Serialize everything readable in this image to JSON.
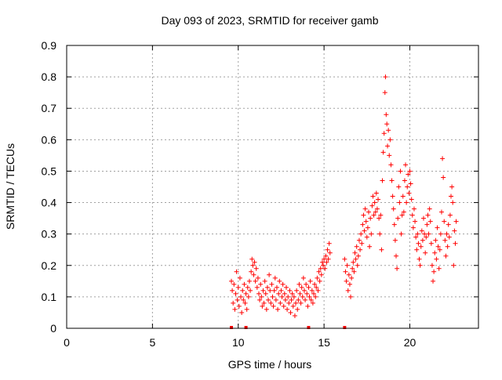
{
  "chart_data": {
    "type": "scatter",
    "title": "Day 093 of 2023, SRMTID for receiver gamb",
    "xlabel": "GPS time / hours",
    "ylabel": "SRMTID / TECUs",
    "xlim": [
      0,
      24
    ],
    "ylim": [
      0,
      0.9
    ],
    "xticks": [
      0,
      5,
      10,
      15,
      20
    ],
    "yticks": [
      0,
      0.1,
      0.2,
      0.3,
      0.4,
      0.5,
      0.6,
      0.7,
      0.8,
      0.9
    ],
    "xtick_labels": [
      "0",
      "5",
      "10",
      "15",
      "20"
    ],
    "ytick_labels": [
      "0",
      "0.1",
      "0.2",
      "0.3",
      "0.4",
      "0.5",
      "0.6",
      "0.7",
      "0.8",
      "0.9"
    ],
    "grid": true,
    "marker": "+",
    "color": "#ff0000",
    "series": [
      {
        "name": "SRMTID",
        "points": [
          [
            9.6,
            0.15
          ],
          [
            9.65,
            0.12
          ],
          [
            9.7,
            0.08
          ],
          [
            9.75,
            0.14
          ],
          [
            9.8,
            0.06
          ],
          [
            9.85,
            0.11
          ],
          [
            9.9,
            0.18
          ],
          [
            9.95,
            0.09
          ],
          [
            10.0,
            0.13
          ],
          [
            10.05,
            0.07
          ],
          [
            10.1,
            0.16
          ],
          [
            10.15,
            0.1
          ],
          [
            10.2,
            0.05
          ],
          [
            10.25,
            0.12
          ],
          [
            10.3,
            0.09
          ],
          [
            10.35,
            0.14
          ],
          [
            10.4,
            0.08
          ],
          [
            10.45,
            0.11
          ],
          [
            10.5,
            0.06
          ],
          [
            10.55,
            0.13
          ],
          [
            10.6,
            0.1
          ],
          [
            10.65,
            0.15
          ],
          [
            10.7,
            0.12
          ],
          [
            10.75,
            0.18
          ],
          [
            10.8,
            0.22
          ],
          [
            10.85,
            0.2
          ],
          [
            10.9,
            0.17
          ],
          [
            10.95,
            0.21
          ],
          [
            11.0,
            0.15
          ],
          [
            11.05,
            0.19
          ],
          [
            11.1,
            0.13
          ],
          [
            11.15,
            0.16
          ],
          [
            11.2,
            0.11
          ],
          [
            11.25,
            0.09
          ],
          [
            11.3,
            0.14
          ],
          [
            11.35,
            0.1
          ],
          [
            11.4,
            0.07
          ],
          [
            11.45,
            0.12
          ],
          [
            11.5,
            0.08
          ],
          [
            11.55,
            0.15
          ],
          [
            11.6,
            0.11
          ],
          [
            11.65,
            0.06
          ],
          [
            11.7,
            0.13
          ],
          [
            11.75,
            0.09
          ],
          [
            11.8,
            0.17
          ],
          [
            11.85,
            0.12
          ],
          [
            11.9,
            0.08
          ],
          [
            11.95,
            0.14
          ],
          [
            12.0,
            0.1
          ],
          [
            12.05,
            0.07
          ],
          [
            12.1,
            0.12
          ],
          [
            12.15,
            0.16
          ],
          [
            12.2,
            0.09
          ],
          [
            12.25,
            0.13
          ],
          [
            12.3,
            0.06
          ],
          [
            12.35,
            0.11
          ],
          [
            12.4,
            0.15
          ],
          [
            12.45,
            0.08
          ],
          [
            12.5,
            0.12
          ],
          [
            12.55,
            0.1
          ],
          [
            12.6,
            0.14
          ],
          [
            12.65,
            0.07
          ],
          [
            12.7,
            0.11
          ],
          [
            12.75,
            0.09
          ],
          [
            12.8,
            0.13
          ],
          [
            12.85,
            0.06
          ],
          [
            12.9,
            0.1
          ],
          [
            12.95,
            0.08
          ],
          [
            13.0,
            0.12
          ],
          [
            13.05,
            0.05
          ],
          [
            13.1,
            0.09
          ],
          [
            13.15,
            0.11
          ],
          [
            13.2,
            0.07
          ],
          [
            13.25,
            0.1
          ],
          [
            13.3,
            0.04
          ],
          [
            13.35,
            0.08
          ],
          [
            13.4,
            0.12
          ],
          [
            13.45,
            0.06
          ],
          [
            13.5,
            0.09
          ],
          [
            13.55,
            0.14
          ],
          [
            13.6,
            0.11
          ],
          [
            13.65,
            0.08
          ],
          [
            13.7,
            0.13
          ],
          [
            13.75,
            0.1
          ],
          [
            13.8,
            0.16
          ],
          [
            13.85,
            0.12
          ],
          [
            13.9,
            0.09
          ],
          [
            13.95,
            0.14
          ],
          [
            14.0,
            0.11
          ],
          [
            14.05,
            0.07
          ],
          [
            14.1,
            0.13
          ],
          [
            14.15,
            0.1
          ],
          [
            14.2,
            0.15
          ],
          [
            14.25,
            0.09
          ],
          [
            14.3,
            0.12
          ],
          [
            14.35,
            0.08
          ],
          [
            14.4,
            0.11
          ],
          [
            14.45,
            0.14
          ],
          [
            14.5,
            0.1
          ],
          [
            14.55,
            0.13
          ],
          [
            14.6,
            0.16
          ],
          [
            14.65,
            0.12
          ],
          [
            14.7,
            0.18
          ],
          [
            14.75,
            0.15
          ],
          [
            14.8,
            0.19
          ],
          [
            14.85,
            0.17
          ],
          [
            14.9,
            0.21
          ],
          [
            14.95,
            0.2
          ],
          [
            15.0,
            0.22
          ],
          [
            15.05,
            0.19
          ],
          [
            15.1,
            0.23
          ],
          [
            15.15,
            0.21
          ],
          [
            15.2,
            0.25
          ],
          [
            15.25,
            0.22
          ],
          [
            15.3,
            0.27
          ],
          [
            15.35,
            0.24
          ],
          [
            16.2,
            0.22
          ],
          [
            16.25,
            0.18
          ],
          [
            16.3,
            0.15
          ],
          [
            16.35,
            0.2
          ],
          [
            16.4,
            0.12
          ],
          [
            16.45,
            0.17
          ],
          [
            16.5,
            0.14
          ],
          [
            16.55,
            0.1
          ],
          [
            16.6,
            0.16
          ],
          [
            16.65,
            0.19
          ],
          [
            16.7,
            0.21
          ],
          [
            16.75,
            0.18
          ],
          [
            16.8,
            0.24
          ],
          [
            16.85,
            0.22
          ],
          [
            16.9,
            0.26
          ],
          [
            16.95,
            0.2
          ],
          [
            17.0,
            0.23
          ],
          [
            17.05,
            0.28
          ],
          [
            17.1,
            0.25
          ],
          [
            17.15,
            0.3
          ],
          [
            17.2,
            0.27
          ],
          [
            17.25,
            0.33
          ],
          [
            17.3,
            0.36
          ],
          [
            17.35,
            0.31
          ],
          [
            17.4,
            0.38
          ],
          [
            17.45,
            0.34
          ],
          [
            17.5,
            0.29
          ],
          [
            17.55,
            0.32
          ],
          [
            17.6,
            0.37
          ],
          [
            17.65,
            0.26
          ],
          [
            17.7,
            0.35
          ],
          [
            17.75,
            0.3
          ],
          [
            17.8,
            0.39
          ],
          [
            17.85,
            0.42
          ],
          [
            17.9,
            0.36
          ],
          [
            17.95,
            0.4
          ],
          [
            18.0,
            0.37
          ],
          [
            18.05,
            0.43
          ],
          [
            18.1,
            0.38
          ],
          [
            18.15,
            0.41
          ],
          [
            18.2,
            0.35
          ],
          [
            18.25,
            0.3
          ],
          [
            18.3,
            0.36
          ],
          [
            18.35,
            0.25
          ],
          [
            18.4,
            0.47
          ],
          [
            18.45,
            0.56
          ],
          [
            18.5,
            0.62
          ],
          [
            18.55,
            0.75
          ],
          [
            18.58,
            0.8
          ],
          [
            18.62,
            0.68
          ],
          [
            18.66,
            0.65
          ],
          [
            18.7,
            0.58
          ],
          [
            18.75,
            0.63
          ],
          [
            18.8,
            0.55
          ],
          [
            18.85,
            0.6
          ],
          [
            18.9,
            0.52
          ],
          [
            18.95,
            0.47
          ],
          [
            19.0,
            0.42
          ],
          [
            19.05,
            0.38
          ],
          [
            19.1,
            0.33
          ],
          [
            19.15,
            0.28
          ],
          [
            19.2,
            0.23
          ],
          [
            19.25,
            0.19
          ],
          [
            19.3,
            0.35
          ],
          [
            19.35,
            0.45
          ],
          [
            19.4,
            0.4
          ],
          [
            19.45,
            0.5
          ],
          [
            19.5,
            0.3
          ],
          [
            19.55,
            0.36
          ],
          [
            19.6,
            0.42
          ],
          [
            19.65,
            0.37
          ],
          [
            19.7,
            0.47
          ],
          [
            19.75,
            0.52
          ],
          [
            19.8,
            0.4
          ],
          [
            19.85,
            0.45
          ],
          [
            19.9,
            0.49
          ],
          [
            19.95,
            0.43
          ],
          [
            20.0,
            0.5
          ],
          [
            20.05,
            0.46
          ],
          [
            20.1,
            0.41
          ],
          [
            20.15,
            0.36
          ],
          [
            20.2,
            0.32
          ],
          [
            20.25,
            0.38
          ],
          [
            20.3,
            0.34
          ],
          [
            20.35,
            0.29
          ],
          [
            20.4,
            0.25
          ],
          [
            20.45,
            0.3
          ],
          [
            20.5,
            0.27
          ],
          [
            20.55,
            0.22
          ],
          [
            20.6,
            0.2
          ],
          [
            20.65,
            0.26
          ],
          [
            20.7,
            0.31
          ],
          [
            20.75,
            0.28
          ],
          [
            20.8,
            0.35
          ],
          [
            20.85,
            0.3
          ],
          [
            20.9,
            0.24
          ],
          [
            20.95,
            0.29
          ],
          [
            21.0,
            0.33
          ],
          [
            21.05,
            0.36
          ],
          [
            21.1,
            0.3
          ],
          [
            21.15,
            0.38
          ],
          [
            21.2,
            0.34
          ],
          [
            21.25,
            0.27
          ],
          [
            21.3,
            0.2
          ],
          [
            21.35,
            0.15
          ],
          [
            21.4,
            0.18
          ],
          [
            21.45,
            0.24
          ],
          [
            21.5,
            0.28
          ],
          [
            21.55,
            0.22
          ],
          [
            21.6,
            0.32
          ],
          [
            21.65,
            0.26
          ],
          [
            21.7,
            0.19
          ],
          [
            21.75,
            0.25
          ],
          [
            21.8,
            0.3
          ],
          [
            21.85,
            0.37
          ],
          [
            21.9,
            0.54
          ],
          [
            21.95,
            0.48
          ],
          [
            22.0,
            0.34
          ],
          [
            22.05,
            0.28
          ],
          [
            22.1,
            0.23
          ],
          [
            22.15,
            0.3
          ],
          [
            22.2,
            0.26
          ],
          [
            22.25,
            0.33
          ],
          [
            22.3,
            0.29
          ],
          [
            22.35,
            0.36
          ],
          [
            22.4,
            0.42
          ],
          [
            22.45,
            0.45
          ],
          [
            22.5,
            0.4
          ],
          [
            22.55,
            0.2
          ],
          [
            22.6,
            0.31
          ],
          [
            22.65,
            0.27
          ],
          [
            22.7,
            0.34
          ]
        ]
      }
    ],
    "zero_points": [
      9.6,
      10.45,
      14.1,
      16.2
    ]
  }
}
